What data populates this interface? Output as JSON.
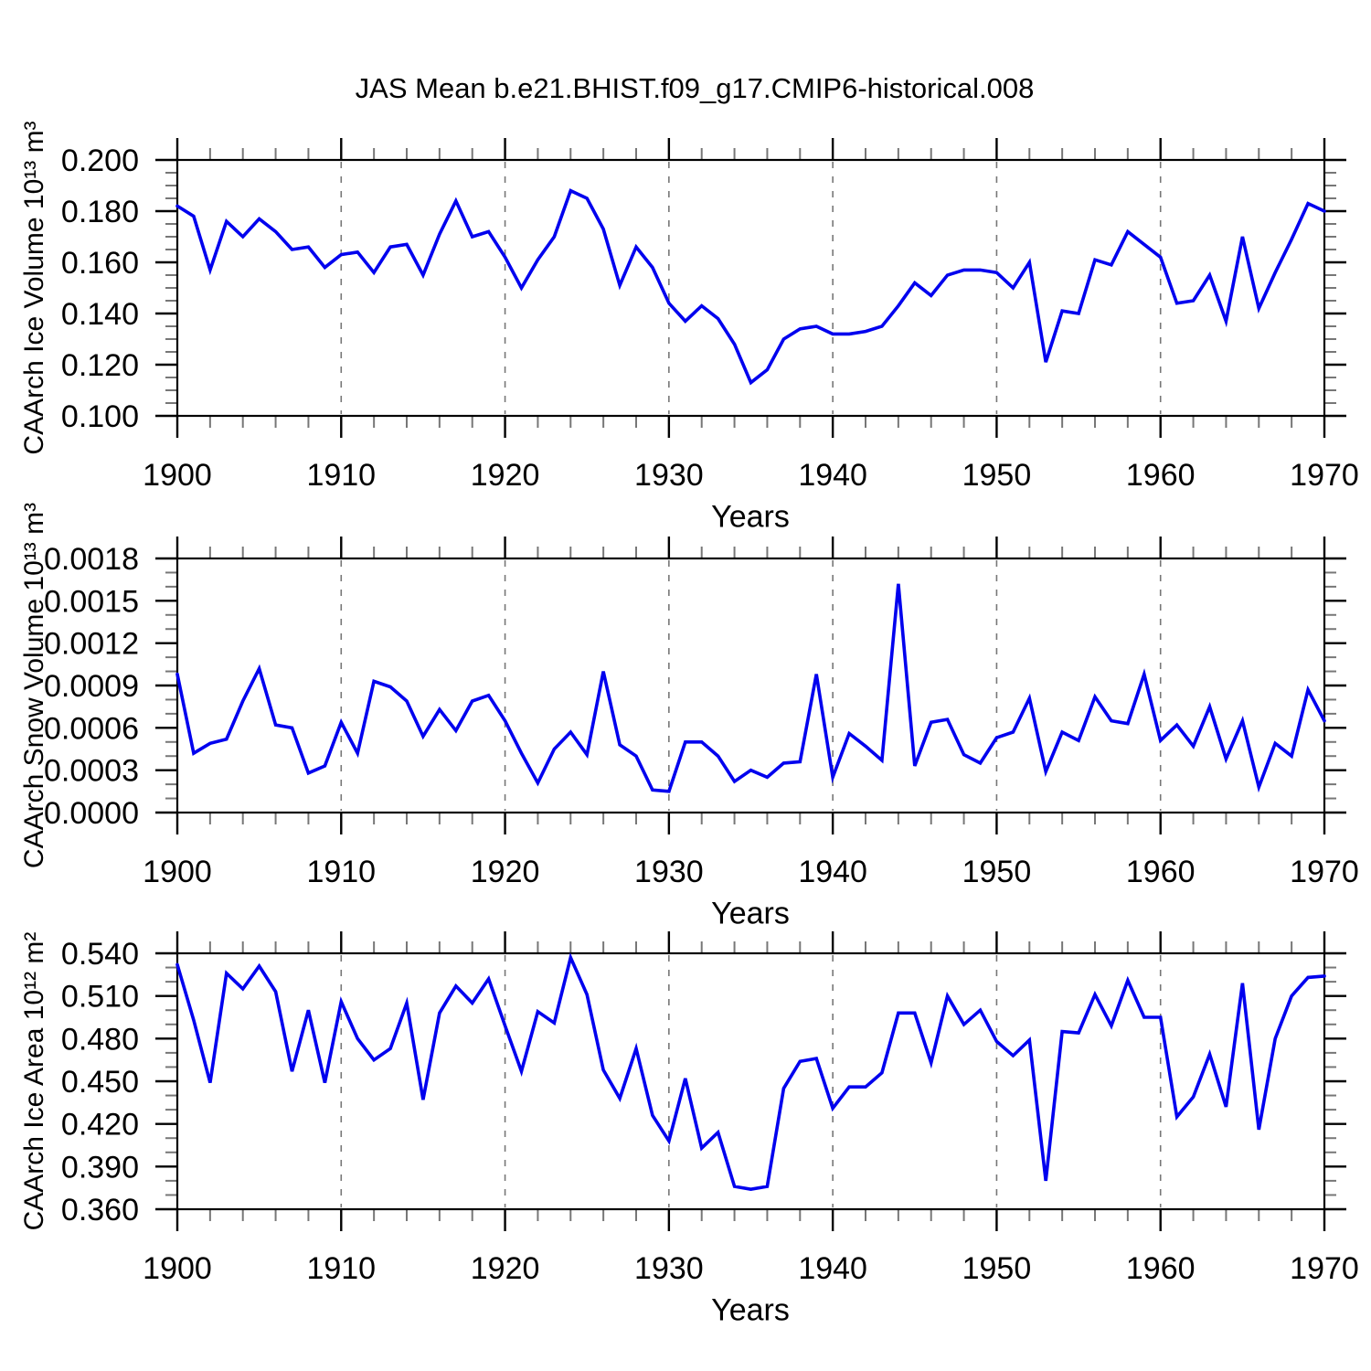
{
  "title": "JAS Mean b.e21.BHIST.f09_g17.CMIP6-historical.008",
  "xlabel": "Years",
  "line_color": "#0000ee",
  "x_major_ticks": [
    1900,
    1910,
    1920,
    1930,
    1940,
    1950,
    1960,
    1970
  ],
  "x_tick_labels": [
    "1900",
    "1910",
    "1920",
    "1930",
    "1940",
    "1950",
    "1960",
    "1970"
  ],
  "x_minor_step": 2,
  "grid_decades": [
    1910,
    1920,
    1930,
    1940,
    1950,
    1960
  ],
  "chart_data": [
    {
      "type": "line",
      "name": "CAArch Ice Volume",
      "ylabel": "CAArch Ice Volume 10¹³ m³",
      "xlabel": "Years",
      "x_start": 1900,
      "x_end": 1970,
      "ylim": [
        0.1,
        0.2
      ],
      "y_major_ticks": [
        0.1,
        0.12,
        0.14,
        0.16,
        0.18,
        0.2
      ],
      "y_tick_labels": [
        "0.100",
        "0.120",
        "0.140",
        "0.160",
        "0.180",
        "0.200"
      ],
      "y_minor_step": 0.005,
      "grid": "vertical-dashed-decades",
      "legend": "none",
      "values": [
        0.182,
        0.178,
        0.157,
        0.176,
        0.17,
        0.177,
        0.172,
        0.165,
        0.166,
        0.158,
        0.163,
        0.164,
        0.156,
        0.166,
        0.167,
        0.155,
        0.171,
        0.184,
        0.17,
        0.172,
        0.162,
        0.15,
        0.161,
        0.17,
        0.188,
        0.185,
        0.173,
        0.151,
        0.166,
        0.158,
        0.144,
        0.137,
        0.143,
        0.138,
        0.128,
        0.113,
        0.118,
        0.13,
        0.134,
        0.135,
        0.132,
        0.132,
        0.133,
        0.135,
        0.143,
        0.152,
        0.147,
        0.155,
        0.157,
        0.157,
        0.156,
        0.15,
        0.16,
        0.121,
        0.141,
        0.14,
        0.161,
        0.159,
        0.172,
        0.167,
        0.162,
        0.144,
        0.145,
        0.155,
        0.137,
        0.17,
        0.142,
        0.156,
        0.169,
        0.183,
        0.18
      ]
    },
    {
      "type": "line",
      "name": "CAArch Snow Volume",
      "ylabel": "CAArch Snow Volume 10¹³ m³",
      "xlabel": "Years",
      "x_start": 1900,
      "x_end": 1970,
      "ylim": [
        0.0,
        0.0018
      ],
      "y_major_ticks": [
        0.0,
        0.0003,
        0.0006,
        0.0009,
        0.0012,
        0.0015,
        0.0018
      ],
      "y_tick_labels": [
        "0.0000",
        "0.0003",
        "0.0006",
        "0.0009",
        "0.0012",
        "0.0015",
        "0.0018"
      ],
      "y_minor_step": 0.0001,
      "grid": "vertical-dashed-decades",
      "legend": "none",
      "values": [
        0.00098,
        0.00042,
        0.00049,
        0.00052,
        0.00079,
        0.00102,
        0.00062,
        0.0006,
        0.00028,
        0.00033,
        0.00064,
        0.00042,
        0.00093,
        0.00089,
        0.00079,
        0.00054,
        0.00073,
        0.00058,
        0.00079,
        0.00083,
        0.00065,
        0.00042,
        0.00021,
        0.00045,
        0.00057,
        0.00041,
        0.001,
        0.00048,
        0.0004,
        0.00016,
        0.00015,
        0.0005,
        0.0005,
        0.0004,
        0.00022,
        0.0003,
        0.00025,
        0.00035,
        0.00036,
        0.00098,
        0.00025,
        0.00056,
        0.00047,
        0.00037,
        0.00162,
        0.00033,
        0.00064,
        0.00066,
        0.00041,
        0.00035,
        0.00053,
        0.00057,
        0.00081,
        0.00029,
        0.00057,
        0.00051,
        0.00082,
        0.00065,
        0.00063,
        0.00098,
        0.00051,
        0.00062,
        0.00047,
        0.00075,
        0.00038,
        0.00065,
        0.00018,
        0.00049,
        0.0004,
        0.00087,
        0.00065
      ]
    },
    {
      "type": "line",
      "name": "CAArch Ice Area",
      "ylabel": "CAArch Ice Area 10¹² m²",
      "xlabel": "Years",
      "x_start": 1900,
      "x_end": 1970,
      "ylim": [
        0.36,
        0.54
      ],
      "y_major_ticks": [
        0.36,
        0.39,
        0.42,
        0.45,
        0.48,
        0.51,
        0.54
      ],
      "y_tick_labels": [
        "0.360",
        "0.390",
        "0.420",
        "0.450",
        "0.480",
        "0.510",
        "0.540"
      ],
      "y_minor_step": 0.01,
      "grid": "vertical-dashed-decades",
      "legend": "none",
      "values": [
        0.532,
        0.493,
        0.449,
        0.526,
        0.515,
        0.531,
        0.513,
        0.457,
        0.5,
        0.449,
        0.506,
        0.48,
        0.465,
        0.473,
        0.505,
        0.437,
        0.498,
        0.517,
        0.505,
        0.522,
        0.489,
        0.457,
        0.499,
        0.491,
        0.537,
        0.511,
        0.458,
        0.438,
        0.473,
        0.426,
        0.408,
        0.452,
        0.403,
        0.414,
        0.376,
        0.374,
        0.376,
        0.445,
        0.464,
        0.466,
        0.431,
        0.446,
        0.446,
        0.456,
        0.498,
        0.498,
        0.463,
        0.51,
        0.49,
        0.5,
        0.478,
        0.468,
        0.479,
        0.38,
        0.485,
        0.484,
        0.511,
        0.489,
        0.521,
        0.495,
        0.495,
        0.425,
        0.439,
        0.469,
        0.432,
        0.519,
        0.416,
        0.48,
        0.51,
        0.523,
        0.524
      ]
    }
  ]
}
